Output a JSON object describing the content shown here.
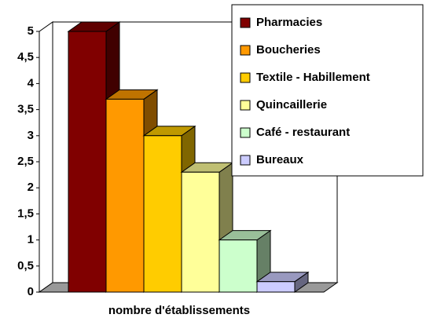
{
  "chart_data": {
    "type": "bar3d",
    "categories": [
      "nombre d'établissements"
    ],
    "series": [
      {
        "name": "Pharmacies",
        "color": "#800000",
        "values": [
          5
        ]
      },
      {
        "name": "Boucheries",
        "color": "#ff9900",
        "values": [
          3.7
        ]
      },
      {
        "name": "Textile - Habillement",
        "color": "#ffcc00",
        "values": [
          3
        ]
      },
      {
        "name": "Quincaillerie",
        "color": "#ffff99",
        "values": [
          2.3
        ]
      },
      {
        "name": "Café - restaurant",
        "color": "#ccffcc",
        "values": [
          1
        ]
      },
      {
        "name": "Bureaux",
        "color": "#ccccff",
        "values": [
          0.2
        ]
      }
    ],
    "ylim": [
      0,
      5
    ],
    "yticks": [
      0,
      {
        "value": 0.5,
        "label": "0,5"
      },
      1,
      {
        "value": 1.5,
        "label": "1,5"
      },
      2,
      {
        "value": 2.5,
        "label": "2,5"
      },
      3,
      {
        "value": 3.5,
        "label": "3,5"
      },
      4,
      {
        "value": 4.5,
        "label": "4,5"
      },
      5
    ],
    "legend": "top-right"
  }
}
